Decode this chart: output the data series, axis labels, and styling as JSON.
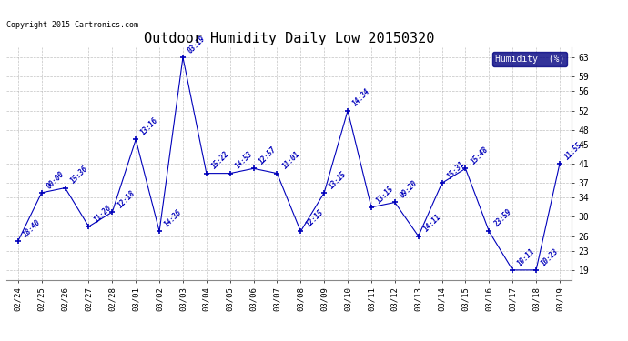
{
  "title": "Outdoor Humidity Daily Low 20150320",
  "copyright": "Copyright 2015 Cartronics.com",
  "legend_label": "Humidity  (%)",
  "dates": [
    "02/24",
    "02/25",
    "02/26",
    "02/27",
    "02/28",
    "03/01",
    "03/02",
    "03/03",
    "03/04",
    "03/05",
    "03/06",
    "03/07",
    "03/08",
    "03/09",
    "03/10",
    "03/11",
    "03/12",
    "03/13",
    "03/14",
    "03/15",
    "03/16",
    "03/17",
    "03/18",
    "03/19"
  ],
  "values": [
    25,
    35,
    36,
    28,
    31,
    46,
    27,
    63,
    39,
    39,
    40,
    39,
    27,
    35,
    52,
    32,
    33,
    26,
    37,
    40,
    27,
    19,
    19,
    41
  ],
  "labels": [
    "18:40",
    "00:00",
    "15:36",
    "11:26",
    "12:18",
    "13:16",
    "14:36",
    "03:19",
    "15:22",
    "14:53",
    "12:57",
    "11:01",
    "12:15",
    "13:15",
    "14:34",
    "13:15",
    "09:20",
    "14:11",
    "15:31",
    "15:48",
    "23:59",
    "10:11",
    "10:23",
    "11:55"
  ],
  "line_color": "#0000bb",
  "background_color": "#ffffff",
  "grid_color": "#bbbbbb",
  "title_fontsize": 11,
  "ylim_min": 17,
  "ylim_max": 65,
  "yticks": [
    19,
    23,
    26,
    30,
    34,
    37,
    41,
    45,
    48,
    52,
    56,
    59,
    63
  ]
}
